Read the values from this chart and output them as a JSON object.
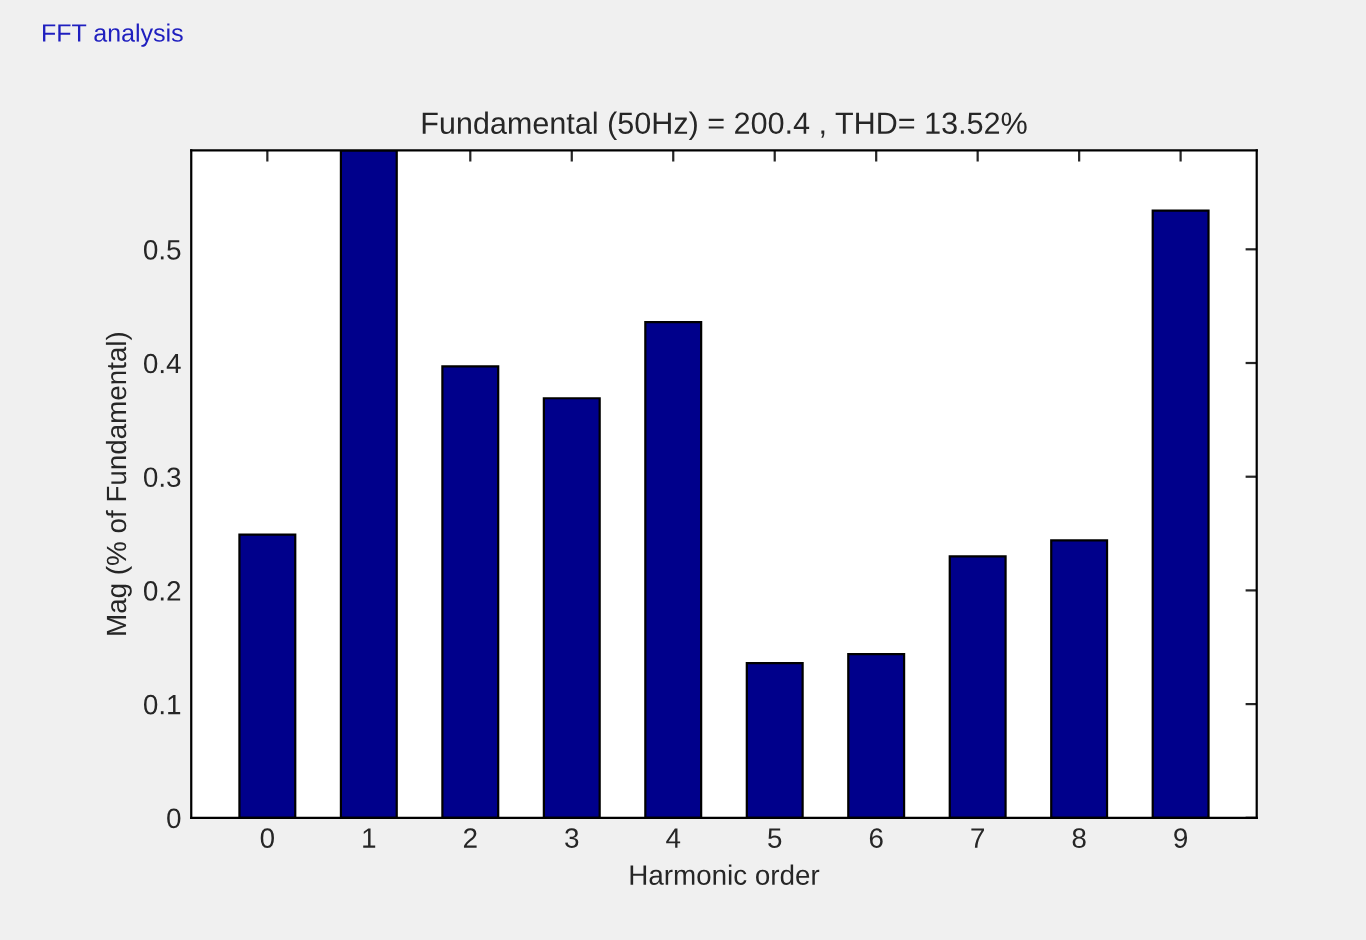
{
  "chart_data": {
    "type": "bar",
    "title": "Fundamental (50Hz) = 200.4 , THD= 13.52%",
    "xlabel": "Harmonic order",
    "ylabel": "Mag (% of Fundamental)",
    "annotations": [
      "FFT analysis"
    ],
    "categories": [
      "0",
      "1",
      "2",
      "3",
      "4",
      "5",
      "6",
      "7",
      "8",
      "9"
    ],
    "values": [
      0.249,
      0.587,
      0.397,
      0.369,
      0.436,
      0.136,
      0.144,
      0.23,
      0.244,
      0.534
    ],
    "color": "#00008b",
    "ylim": [
      0,
      0.587
    ],
    "yticks": [
      0,
      0.1,
      0.2,
      0.3,
      0.4,
      0.5
    ],
    "grid": false,
    "legend": false
  }
}
